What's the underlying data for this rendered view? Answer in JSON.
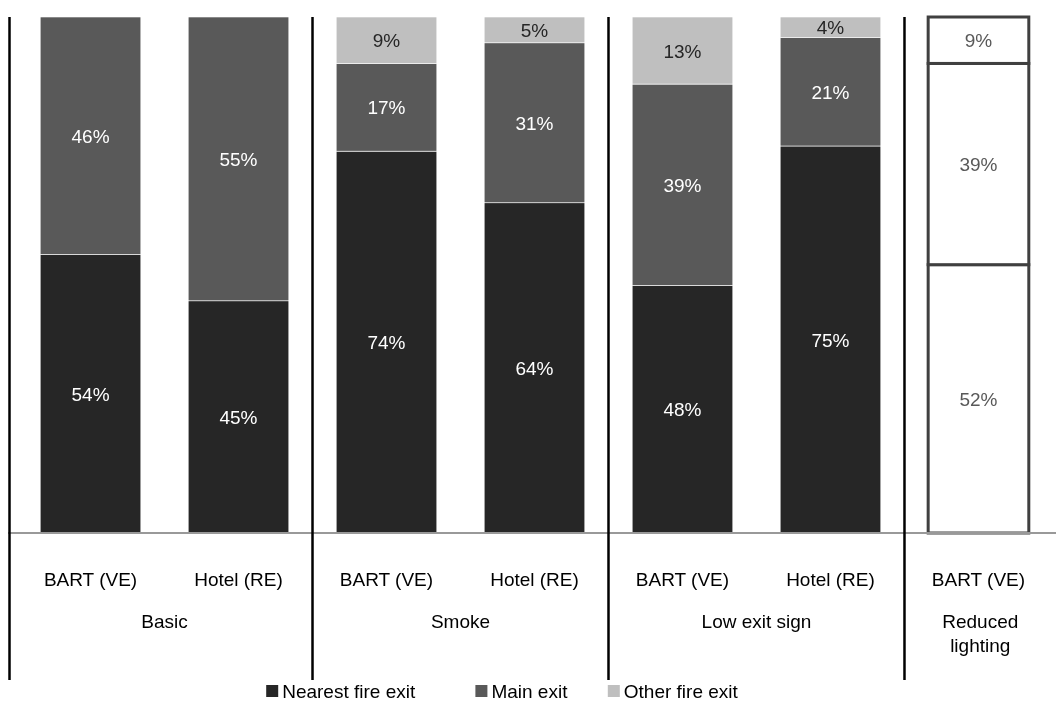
{
  "chart_data": {
    "type": "bar",
    "stacked": true,
    "categories": [
      "BART (VE)",
      "Hotel (RE)",
      "BART (VE)",
      "Hotel (RE)",
      "BART (VE)",
      "Hotel (RE)",
      "BART (VE)"
    ],
    "series": [
      {
        "name": "Nearest fire exit",
        "color": "#262626",
        "colors": [
          "#262626",
          "#262626",
          "#262626",
          "#262626",
          "#262626",
          "#262626",
          "#ffffff"
        ],
        "values": [
          54,
          45,
          74,
          64,
          48,
          75,
          52
        ],
        "value_labels": [
          "54%",
          "45%",
          "74%",
          "64%",
          "48%",
          "75%",
          "52%"
        ]
      },
      {
        "name": "Main exit",
        "color": "#595959",
        "colors": [
          "#595959",
          "#595959",
          "#595959",
          "#595959",
          "#595959",
          "#595959",
          "#ffffff"
        ],
        "values": [
          46,
          55,
          17,
          31,
          39,
          21,
          39
        ],
        "value_labels": [
          "46%",
          "55%",
          "17%",
          "31%",
          "39%",
          "21%",
          "39%"
        ]
      },
      {
        "name": "Other fire exit",
        "color": "#bfbfbf",
        "colors": [
          null,
          null,
          "#bfbfbf",
          "#bfbfbf",
          "#bfbfbf",
          "#bfbfbf",
          "#ffffff"
        ],
        "values": [
          null,
          null,
          9,
          5,
          13,
          4,
          9
        ],
        "value_labels": [
          null,
          null,
          "9%",
          "5%",
          "13%",
          "4%",
          "9%"
        ]
      }
    ],
    "annotations": [
      "Basic",
      "Smoke",
      "Low exit sign",
      "Reduced lighting"
    ],
    "legend": "bottom"
  }
}
